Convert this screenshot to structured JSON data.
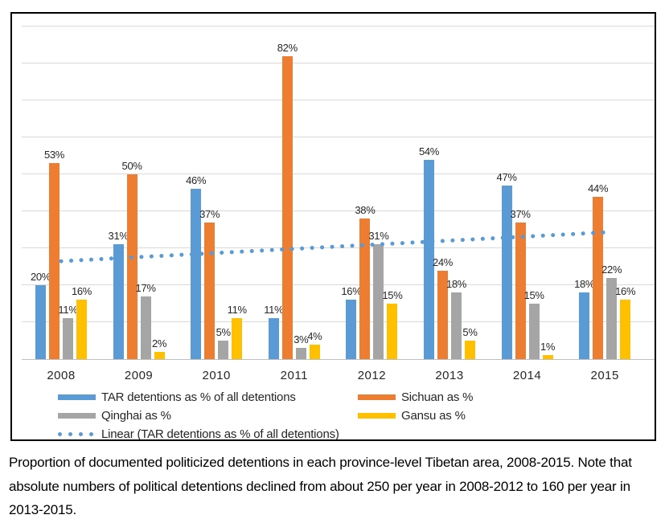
{
  "chart_data": {
    "type": "bar",
    "title": "",
    "categories": [
      "2008",
      "2009",
      "2010",
      "2011",
      "2012",
      "2013",
      "2014",
      "2015"
    ],
    "series": [
      {
        "name": "TAR detentions as % of all detentions",
        "color": "#5B9BD5",
        "values": [
          20,
          31,
          46,
          11,
          16,
          54,
          47,
          18
        ]
      },
      {
        "name": "Sichuan as %",
        "color": "#ED7D31",
        "values": [
          53,
          50,
          37,
          82,
          38,
          24,
          37,
          44
        ]
      },
      {
        "name": "Qinghai as %",
        "color": "#A5A5A5",
        "values": [
          11,
          17,
          5,
          3,
          31,
          18,
          15,
          22
        ]
      },
      {
        "name": "Gansu as %",
        "color": "#FFC000",
        "values": [
          16,
          2,
          11,
          4,
          15,
          5,
          1,
          16
        ]
      }
    ],
    "data_label_format": "{value}%",
    "trendline": {
      "name": "Linear (TAR detentions as % of all detentions)",
      "color": "#5B9BD5",
      "style": "dotted",
      "start_value": 26.5,
      "end_value": 34.3
    },
    "xlabel": "",
    "ylabel": "",
    "ylim": [
      0,
      90
    ],
    "gridline_step": 10,
    "y_axis_labels_visible": false,
    "grid": true,
    "legend_position": "bottom"
  },
  "caption": {
    "line1": "Proportion of documented politicized detentions in each province-level Tibetan area, 2008-2015. Note that",
    "line2": "absolute numbers of political detentions declined from about 250 per year in 2008-2012 to 160 per year in",
    "line3": "2013-2015."
  }
}
